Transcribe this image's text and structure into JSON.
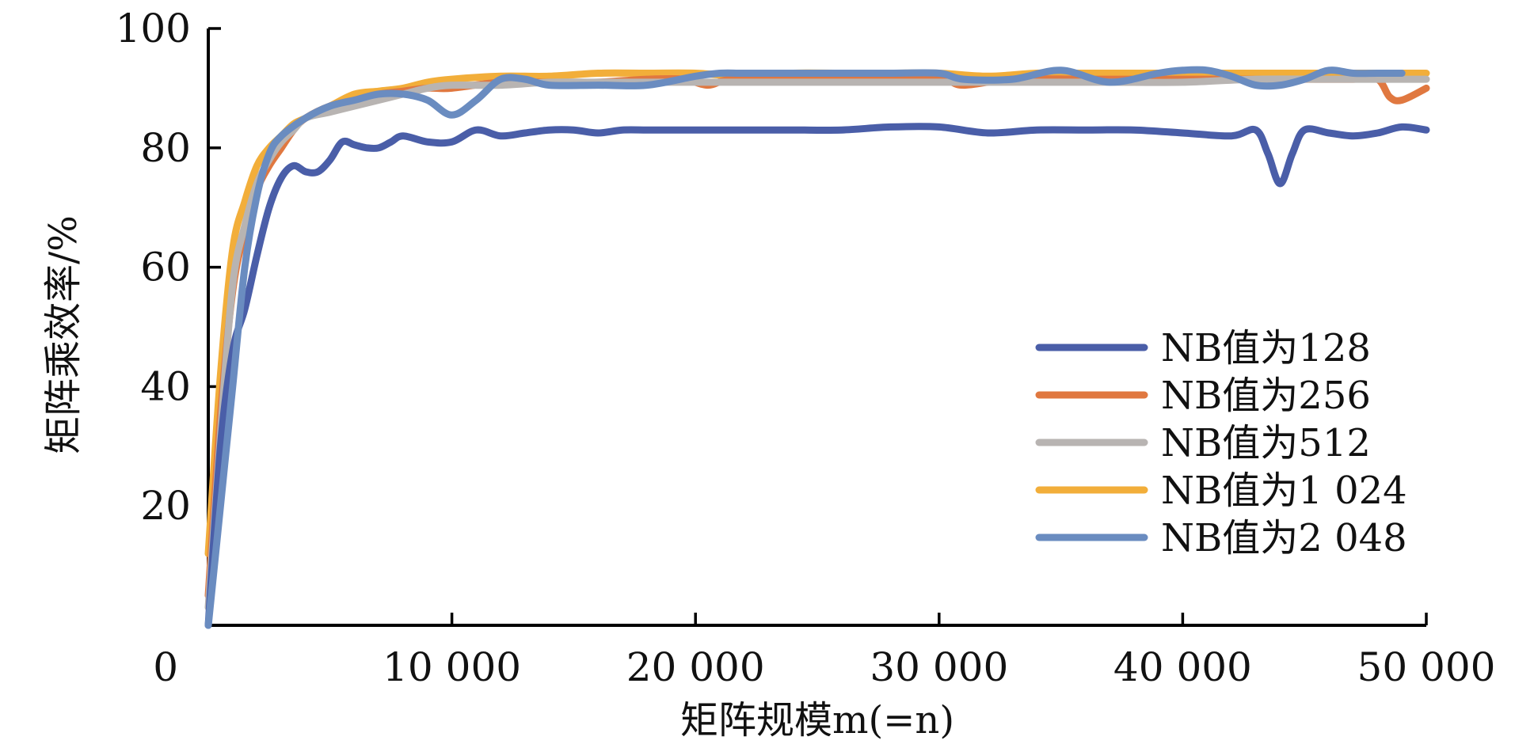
{
  "chart_data": {
    "type": "line",
    "xlabel": "矩阵规模m(=n)",
    "ylabel": "矩阵乘效率/%",
    "xlim": [
      0,
      50000
    ],
    "ylim": [
      0,
      100
    ],
    "x_ticks": [
      0,
      10000,
      20000,
      30000,
      40000,
      50000
    ],
    "x_tick_labels": [
      "0",
      "10 000",
      "20 000",
      "30 000",
      "40 000",
      "50 000"
    ],
    "y_ticks": [
      20,
      40,
      60,
      80,
      100
    ],
    "y_tick_labels": [
      "20",
      "40",
      "60",
      "80",
      "100"
    ],
    "grid": false,
    "legend_position": "right-middle",
    "series": [
      {
        "name": "NB值为128",
        "color": "#4a5ea8",
        "x": [
          0,
          500,
          1000,
          1500,
          2000,
          2500,
          3000,
          3500,
          4000,
          4500,
          5000,
          5500,
          6000,
          6500,
          7000,
          7500,
          8000,
          9000,
          10000,
          11000,
          12000,
          13000,
          14000,
          15000,
          16000,
          17000,
          18000,
          19000,
          20000,
          22000,
          24000,
          26000,
          28000,
          30000,
          32000,
          34000,
          36000,
          38000,
          40000,
          42000,
          43000,
          43500,
          44000,
          44500,
          45000,
          46000,
          47000,
          48000,
          49000,
          50000
        ],
        "y": [
          0,
          30,
          46,
          53,
          62,
          70,
          75,
          77,
          76,
          76,
          78,
          81,
          80.5,
          80,
          80,
          81,
          82,
          81,
          81,
          83,
          82,
          82.5,
          83,
          83,
          82.5,
          83,
          83,
          83,
          83,
          83,
          83,
          83,
          83.5,
          83.5,
          82.5,
          83,
          83,
          83,
          82.5,
          82,
          83,
          79,
          74,
          79,
          83,
          82.5,
          82,
          82.5,
          83.5,
          83
        ]
      },
      {
        "name": "NB值为256",
        "color": "#e07840",
        "x": [
          0,
          500,
          1000,
          1500,
          2000,
          2500,
          3000,
          3500,
          4000,
          5000,
          6000,
          7000,
          8000,
          9000,
          10000,
          12000,
          14000,
          16000,
          18000,
          19500,
          20500,
          21500,
          24000,
          27000,
          30000,
          31000,
          33000,
          36000,
          39000,
          42000,
          45000,
          47000,
          48000,
          48500,
          49000,
          50000
        ],
        "y": [
          5,
          35,
          56,
          66,
          73,
          77,
          80,
          83,
          85,
          87,
          88,
          89,
          89.5,
          90,
          90,
          91,
          91,
          91,
          91.5,
          91.5,
          90.5,
          91.5,
          91.5,
          91.5,
          91.5,
          90.5,
          91.5,
          91.5,
          91.5,
          91.5,
          91.5,
          91.5,
          91.5,
          88.5,
          88,
          90
        ]
      },
      {
        "name": "NB值为512",
        "color": "#b8b4b2",
        "x": [
          0,
          500,
          1000,
          1500,
          2000,
          2500,
          3000,
          3500,
          4000,
          5000,
          6000,
          7000,
          8000,
          9000,
          10000,
          12000,
          14000,
          16000,
          18000,
          20000,
          22000,
          25000,
          28000,
          31000,
          34000,
          37000,
          40000,
          43000,
          46000,
          48000,
          50000
        ],
        "y": [
          3,
          32,
          57,
          67,
          74,
          78,
          81,
          83,
          85,
          86,
          87,
          88,
          89,
          90,
          90.5,
          90.5,
          91,
          91,
          91,
          91,
          91,
          91,
          91,
          91,
          91,
          91,
          91,
          91.5,
          91.5,
          91.5,
          91.5
        ]
      },
      {
        "name": "NB值为1 024",
        "color": "#f2ae3a",
        "x": [
          0,
          500,
          1000,
          1500,
          2000,
          2500,
          3000,
          3500,
          4000,
          5000,
          6000,
          7000,
          8000,
          9000,
          10000,
          12000,
          14000,
          16000,
          18000,
          20000,
          22000,
          24000,
          26000,
          28000,
          30000,
          32000,
          34000,
          36000,
          38000,
          40000,
          42000,
          44000,
          46000,
          48000,
          50000
        ],
        "y": [
          12,
          42,
          63,
          71,
          77,
          80,
          82,
          84,
          85,
          87,
          89,
          89.5,
          90,
          91,
          91.5,
          92,
          92,
          92.5,
          92.5,
          92.5,
          92,
          92.5,
          92.5,
          92.5,
          92.5,
          92,
          92.5,
          92.5,
          92.5,
          92.5,
          92.5,
          92.5,
          92.5,
          92.5,
          92.5
        ]
      },
      {
        "name": "NB值为2 048",
        "color": "#6a8cc0",
        "x": [
          0,
          500,
          1000,
          1500,
          2000,
          2500,
          3000,
          4000,
          5000,
          6000,
          7000,
          8000,
          9000,
          10000,
          11000,
          12000,
          13000,
          14000,
          16000,
          18000,
          20000,
          21000,
          22000,
          24000,
          26000,
          28000,
          30000,
          31000,
          33000,
          35000,
          37000,
          39000,
          40000,
          41000,
          42000,
          43000,
          44000,
          45000,
          46000,
          47000,
          48000,
          49000
        ],
        "y": [
          0,
          20,
          40,
          60,
          72,
          79,
          82,
          85,
          87,
          88,
          89,
          89,
          88,
          85.5,
          88,
          91.5,
          91.5,
          90.5,
          90.5,
          90.5,
          92,
          92.5,
          92.5,
          92.5,
          92.5,
          92.5,
          92.5,
          91.5,
          91.5,
          93,
          91,
          92.5,
          93,
          93,
          92,
          90.5,
          90.5,
          91.5,
          93,
          92.5,
          92.5,
          92.5
        ]
      }
    ]
  }
}
